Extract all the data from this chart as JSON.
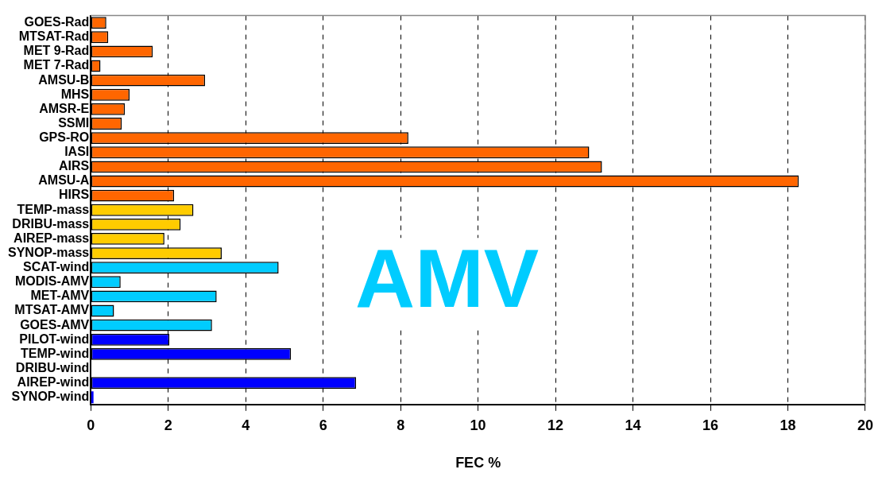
{
  "chart_data": {
    "type": "bar",
    "orientation": "horizontal",
    "xlabel": "FEC %",
    "categories": [
      "GOES-Rad",
      "MTSAT-Rad",
      "MET 9-Rad",
      "MET 7-Rad",
      "AMSU-B",
      "MHS",
      "AMSR-E",
      "SSMI",
      "GPS-RO",
      "IASI",
      "AIRS",
      "AMSU-A",
      "HIRS",
      "TEMP-mass",
      "DRIBU-mass",
      "AIREP-mass",
      "SYNOP-mass",
      "SCAT-wind",
      "MODIS-AMV",
      "MET-AMV",
      "MTSAT-AMV",
      "GOES-AMV",
      "PILOT-wind",
      "TEMP-wind",
      "DRIBU-wind",
      "AIREP-wind",
      "SYNOP-wind"
    ],
    "values": [
      0.4,
      0.45,
      1.6,
      0.25,
      2.95,
      1.0,
      0.88,
      0.8,
      8.2,
      12.87,
      13.2,
      18.28,
      2.15,
      2.65,
      2.32,
      1.9,
      3.38,
      4.85,
      0.77,
      3.25,
      0.6,
      3.13,
      2.03,
      5.17,
      0,
      6.85,
      0.07
    ],
    "colors": [
      "#ff6600",
      "#ff6600",
      "#ff6600",
      "#ff6600",
      "#ff6600",
      "#ff6600",
      "#ff6600",
      "#ff6600",
      "#ff6600",
      "#ff6600",
      "#ff6600",
      "#ff6600",
      "#ff6600",
      "#ffcc00",
      "#ffcc00",
      "#ffcc00",
      "#ffcc00",
      "#00ccff",
      "#00ccff",
      "#00ccff",
      "#00ccff",
      "#00ccff",
      "#0000ff",
      "#0000ff",
      "#0000ff",
      "#0000ff",
      "#0000ff"
    ],
    "xlim": [
      0,
      20
    ],
    "xticks": [
      0,
      2,
      4,
      6,
      8,
      10,
      12,
      14,
      16,
      18,
      20
    ],
    "grid": "x",
    "legend": false,
    "annotations": [
      "AMV"
    ]
  }
}
